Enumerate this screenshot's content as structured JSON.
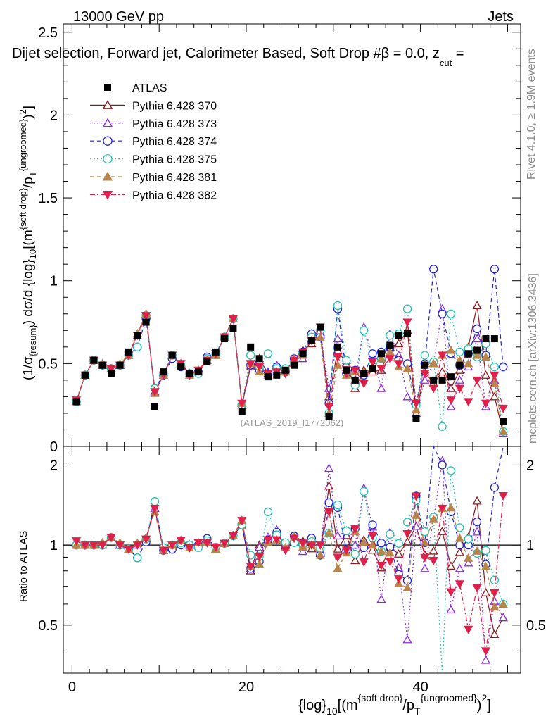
{
  "header": {
    "left": "13000 GeV pp",
    "right": "Jets",
    "title": "Dijet selection, Forward jet, Calorimeter Based, Soft Drop #β = 0.0, z",
    "title_sub": "cut",
    "title_tail": " ="
  },
  "side_labels": {
    "rivet": "Rivet 4.1.0, ≥ 1.9M events",
    "mcplots": "mcplots.cern.ch [arXiv:1306.3436]"
  },
  "watermark": "(ATLAS_2019_I1772062)",
  "axes": {
    "ylabel_top": "(1/σ{resum}) dσ/d {log}10[(m^{soft drop}/pT^{ungroomed})^2]",
    "ylabel_bottom": "Ratio to ATLAS",
    "xlabel": "{log}10[(m^{soft drop}/pT^{ungroomed})^2]",
    "main_yticks": [
      "0",
      "0.5",
      "1",
      "1.5",
      "2",
      "2.5"
    ],
    "ratio_yticks": [
      "0.5",
      "1",
      "2"
    ],
    "xticks": [
      "0",
      "20",
      "40"
    ]
  },
  "chart_data": {
    "type": "scatter",
    "xlim": [
      -1,
      51.5
    ],
    "ylim": [
      0,
      2.55
    ],
    "ratio_ylim": [
      0.33,
      2.35
    ],
    "x": [
      0.5,
      1.5,
      2.5,
      3.5,
      4.5,
      5.5,
      6.5,
      7.5,
      8.5,
      9.5,
      10.5,
      11.5,
      12.5,
      13.5,
      14.5,
      15.5,
      16.5,
      17.5,
      18.5,
      19.5,
      20.5,
      21.5,
      22.5,
      23.5,
      24.5,
      25.5,
      26.5,
      27.5,
      28.5,
      29.5,
      30.5,
      31.5,
      32.5,
      33.5,
      34.5,
      35.5,
      36.5,
      37.5,
      38.5,
      39.5,
      40.5,
      41.5,
      42.5,
      43.5,
      44.5,
      45.5,
      46.5,
      47.5,
      48.5,
      49.5
    ],
    "legend": [
      "ATLAS",
      "Pythia 6.428 370",
      "Pythia 6.428 373",
      "Pythia 6.428 374",
      "Pythia 6.428 375",
      "Pythia 6.428 381",
      "Pythia 6.428 382"
    ],
    "series": [
      {
        "name": "ATLAS",
        "color": "#000000",
        "marker": "square",
        "style": "none",
        "values": [
          0.27,
          0.43,
          0.52,
          0.49,
          0.44,
          0.49,
          0.57,
          0.67,
          0.75,
          0.24,
          0.45,
          0.55,
          0.48,
          0.44,
          0.45,
          0.51,
          0.57,
          0.65,
          0.71,
          0.21,
          0.6,
          0.53,
          0.42,
          0.43,
          0.46,
          0.49,
          0.56,
          0.64,
          0.72,
          0.18,
          0.6,
          0.46,
          0.4,
          0.44,
          0.47,
          0.56,
          0.61,
          0.67,
          0.68,
          0.17,
          0.49,
          0.4,
          0.4,
          0.42,
          0.49,
          0.56,
          0.58,
          0.65,
          0.65,
          0.15
        ]
      },
      {
        "name": "Pythia 6.428 370",
        "color": "#8b1a1a",
        "marker": "triangle-up-open",
        "style": "solid",
        "values": [
          0.27,
          0.43,
          0.52,
          0.49,
          0.47,
          0.49,
          0.55,
          0.68,
          0.8,
          0.33,
          0.43,
          0.55,
          0.5,
          0.44,
          0.46,
          0.52,
          0.55,
          0.66,
          0.77,
          0.25,
          0.48,
          0.53,
          0.44,
          0.48,
          0.45,
          0.53,
          0.58,
          0.62,
          0.67,
          0.3,
          0.58,
          0.5,
          0.35,
          0.46,
          0.45,
          0.46,
          0.6,
          0.62,
          0.7,
          0.2,
          0.45,
          0.38,
          0.45,
          0.35,
          0.46,
          0.6,
          0.85,
          0.43,
          0.3,
          0.08
        ]
      },
      {
        "name": "Pythia 6.428 373",
        "color": "#8a2be2",
        "marker": "triangle-up-open",
        "style": "dotted",
        "values": [
          0.27,
          0.43,
          0.52,
          0.5,
          0.47,
          0.49,
          0.55,
          0.67,
          0.8,
          0.33,
          0.43,
          0.55,
          0.5,
          0.44,
          0.45,
          0.52,
          0.55,
          0.66,
          0.77,
          0.26,
          0.49,
          0.52,
          0.45,
          0.49,
          0.45,
          0.53,
          0.53,
          0.68,
          0.69,
          0.35,
          0.65,
          0.52,
          0.4,
          0.72,
          0.55,
          0.35,
          0.68,
          0.55,
          0.3,
          0.2,
          0.4,
          0.5,
          0.83,
          0.24,
          0.4,
          0.48,
          0.65,
          0.24,
          0.4,
          0.08
        ]
      },
      {
        "name": "Pythia 6.428 374",
        "color": "#1f1fe0",
        "marker": "circle-open",
        "style": "dashed",
        "values": [
          0.27,
          0.43,
          0.52,
          0.49,
          0.47,
          0.49,
          0.55,
          0.6,
          0.77,
          0.35,
          0.43,
          0.53,
          0.48,
          0.44,
          0.45,
          0.54,
          0.56,
          0.66,
          0.77,
          0.25,
          0.49,
          0.46,
          0.44,
          0.48,
          0.45,
          0.53,
          0.57,
          0.68,
          0.66,
          0.26,
          0.83,
          0.44,
          0.46,
          0.43,
          0.56,
          0.57,
          0.6,
          0.52,
          0.5,
          0.26,
          0.5,
          1.07,
          0.8,
          0.56,
          0.49,
          0.56,
          0.71,
          0.55,
          1.07,
          0.48
        ]
      },
      {
        "name": "Pythia 6.428 375",
        "color": "#20c2b0",
        "marker": "circle-open",
        "style": "dotted",
        "values": [
          0.27,
          0.43,
          0.52,
          0.49,
          0.47,
          0.49,
          0.55,
          0.6,
          0.79,
          0.35,
          0.44,
          0.55,
          0.49,
          0.44,
          0.44,
          0.53,
          0.56,
          0.66,
          0.77,
          0.25,
          0.55,
          0.48,
          0.56,
          0.47,
          0.47,
          0.5,
          0.56,
          0.66,
          0.7,
          0.2,
          0.85,
          0.52,
          0.37,
          0.7,
          0.5,
          0.53,
          0.67,
          0.68,
          0.83,
          0.25,
          0.55,
          0.51,
          0.12,
          0.8,
          0.57,
          0.59,
          0.54,
          0.62,
          0.48,
          0.09
        ]
      },
      {
        "name": "Pythia 6.428 381",
        "color": "#b8864b",
        "marker": "triangle-up",
        "style": "dashed",
        "values": [
          0.27,
          0.43,
          0.52,
          0.5,
          0.47,
          0.5,
          0.55,
          0.68,
          0.8,
          0.32,
          0.43,
          0.55,
          0.5,
          0.43,
          0.46,
          0.52,
          0.55,
          0.66,
          0.77,
          0.26,
          0.5,
          0.45,
          0.43,
          0.45,
          0.45,
          0.53,
          0.55,
          0.64,
          0.66,
          0.2,
          0.49,
          0.43,
          0.45,
          0.45,
          0.47,
          0.53,
          0.57,
          0.48,
          0.47,
          0.22,
          0.5,
          0.5,
          0.55,
          0.58,
          0.52,
          0.5,
          0.55,
          0.54,
          0.38,
          0.09
        ]
      },
      {
        "name": "Pythia 6.428 382",
        "color": "#e0204a",
        "marker": "triangle-down",
        "style": "dashdot",
        "values": [
          0.28,
          0.43,
          0.52,
          0.49,
          0.47,
          0.49,
          0.55,
          0.67,
          0.79,
          0.33,
          0.43,
          0.55,
          0.5,
          0.43,
          0.46,
          0.52,
          0.56,
          0.66,
          0.77,
          0.26,
          0.5,
          0.48,
          0.44,
          0.45,
          0.44,
          0.52,
          0.57,
          0.64,
          0.72,
          0.24,
          0.54,
          0.44,
          0.46,
          0.38,
          0.51,
          0.47,
          0.53,
          0.5,
          0.75,
          0.26,
          0.44,
          0.35,
          0.55,
          0.28,
          0.35,
          0.27,
          0.4,
          0.26,
          0.43,
          0.23
        ]
      }
    ]
  }
}
